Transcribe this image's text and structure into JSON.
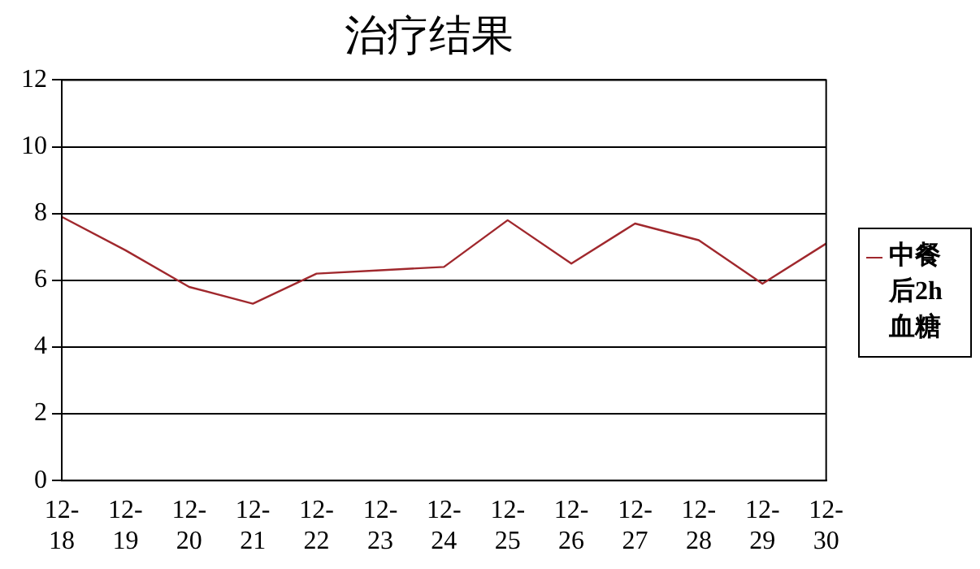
{
  "chart_data": {
    "type": "line",
    "title": "治疗结果",
    "categories": [
      "12-18",
      "12-19",
      "12-20",
      "12-21",
      "12-22",
      "12-23",
      "12-24",
      "12-25",
      "12-26",
      "12-27",
      "12-28",
      "12-29",
      "12-30"
    ],
    "series": [
      {
        "name": "中餐后2h血糖",
        "color": "#a0282d",
        "values": [
          7.9,
          6.9,
          5.8,
          5.3,
          6.2,
          6.3,
          6.4,
          7.8,
          6.5,
          7.7,
          7.2,
          5.9,
          7.1
        ]
      }
    ],
    "ylim": [
      0,
      12
    ],
    "yticks": [
      0,
      2,
      4,
      6,
      8,
      10,
      12
    ],
    "grid": "y",
    "legend": "right",
    "marker": "none"
  }
}
